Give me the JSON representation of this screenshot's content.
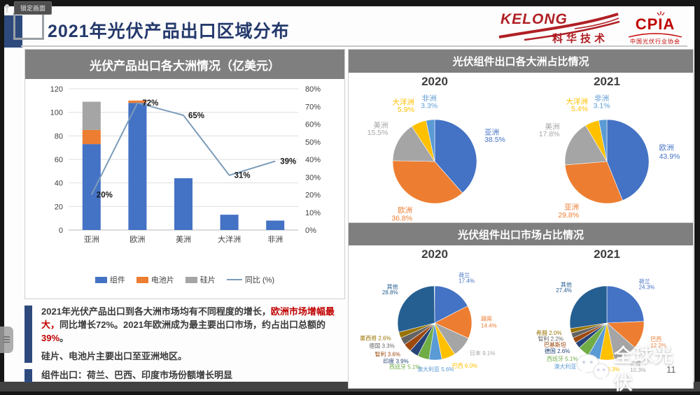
{
  "window": {
    "lock_tab_label": "锁定画面",
    "page_number": "11",
    "watermark_text": "全球光伏"
  },
  "header": {
    "title": "2021年光伏产品出口区域分布",
    "kelong_logo_text": "KELONG",
    "kelong_logo_sub": "科华技术",
    "cpia_logo_text": "CPIA",
    "cpia_logo_sub": "中国光伏行业协会"
  },
  "notes": {
    "para1_segments": [
      {
        "text": "2021年光伏产品出口到各大洲市场均有不同程度的增长，",
        "red": false
      },
      {
        "text": "欧洲市场增幅最大，",
        "red": true
      },
      {
        "text": "同比增长72%。2021年欧洲成为最主要出口市场，约占出口总额的",
        "red": false
      },
      {
        "text": "39%",
        "red": true
      },
      {
        "text": "。",
        "red": false
      }
    ],
    "para2": "硅片、电池片主要出口至亚洲地区。",
    "para3": "组件出口：荷兰、巴西、印度市场份额增长明显"
  },
  "chart_data": [
    {
      "type": "bar",
      "subtype": "stacked-bar-with-line",
      "panel_title": "光伏产品出口各大洲情况（亿美元）",
      "categories": [
        "亚洲",
        "欧洲",
        "美洲",
        "大洋洲",
        "非洲"
      ],
      "bar_series": [
        {
          "name": "组件",
          "color": "#4472c4",
          "values": [
            73,
            108,
            44,
            13,
            8
          ]
        },
        {
          "name": "电池片",
          "color": "#ed7d31",
          "values": [
            12,
            2,
            0,
            0,
            0
          ]
        },
        {
          "name": "硅片",
          "color": "#a5a5a5",
          "values": [
            24,
            0,
            0,
            0,
            0
          ]
        }
      ],
      "line_series": {
        "name": "同比 (%)",
        "color": "#7c9cba",
        "axis": "right",
        "values": [
          20,
          72,
          65,
          31,
          39
        ],
        "labels": [
          "20%",
          "72%",
          "65%",
          "31%",
          "39%"
        ]
      },
      "left_axis": {
        "min": 0,
        "max": 120,
        "step": 20
      },
      "right_axis": {
        "min": 0,
        "max": 80,
        "step": 10,
        "suffix": "%"
      },
      "stacked": true,
      "grid": true,
      "legend_position": "bottom"
    },
    {
      "type": "pie",
      "panel_title": "光伏组件出口各大洲占比情况",
      "palette": [
        "#4472c4",
        "#ed7d31",
        "#a5a5a5",
        "#ffc000",
        "#5b9bd5"
      ],
      "pies": [
        {
          "year": "2020",
          "slices": [
            {
              "name": "亚洲",
              "pct": 38.5,
              "pct_label": "38.5%"
            },
            {
              "name": "欧洲",
              "pct": 36.8,
              "pct_label": "36.8%"
            },
            {
              "name": "美洲",
              "pct": 15.5,
              "pct_label": "15.5%"
            },
            {
              "name": "大洋洲",
              "pct": 5.9,
              "pct_label": "5.9%"
            },
            {
              "name": "非洲",
              "pct": 3.3,
              "pct_label": "3.3%"
            }
          ]
        },
        {
          "year": "2021",
          "slices": [
            {
              "name": "欧洲",
              "pct": 43.9,
              "pct_label": "43.9%"
            },
            {
              "name": "亚洲",
              "pct": 29.8,
              "pct_label": "29.8%"
            },
            {
              "name": "美洲",
              "pct": 17.8,
              "pct_label": "17.8%"
            },
            {
              "name": "大洋洲",
              "pct": 5.4,
              "pct_label": "5.4%"
            },
            {
              "name": "非洲",
              "pct": 3.1,
              "pct_label": "3.1%"
            }
          ]
        }
      ]
    },
    {
      "type": "pie",
      "panel_title": "光伏组件出口市场占比情况",
      "palette": [
        "#4472c4",
        "#ed7d31",
        "#a5a5a5",
        "#ffc000",
        "#5b9bd5",
        "#70ad47",
        "#264478",
        "#9e480e",
        "#636363",
        "#997300",
        "#255e91"
      ],
      "pies": [
        {
          "year": "2020",
          "slices": [
            {
              "name": "荷兰",
              "pct": 17.4,
              "pct_label": "17.4%"
            },
            {
              "name": "越南",
              "pct": 14.4,
              "pct_label": "14.4%"
            },
            {
              "name": "日本",
              "pct": 9.1,
              "pct_label": "9.1%"
            },
            {
              "name": "巴西",
              "pct": 6.0,
              "pct_label": "6.0%"
            },
            {
              "name": "澳大利亚",
              "pct": 5.6,
              "pct_label": "5.6%"
            },
            {
              "name": "西班牙",
              "pct": 5.1,
              "pct_label": "5.1%"
            },
            {
              "name": "印度",
              "pct": 3.9,
              "pct_label": "3.9%"
            },
            {
              "name": "智利",
              "pct": 3.6,
              "pct_label": "3.6%"
            },
            {
              "name": "德国",
              "pct": 3.3,
              "pct_label": "3.3%"
            },
            {
              "name": "墨西哥",
              "pct": 2.6,
              "pct_label": "2.6%"
            },
            {
              "name": "其他",
              "pct": 28.8,
              "pct_label": "28.8%"
            }
          ]
        },
        {
          "year": "2021",
          "slices": [
            {
              "name": "荷兰",
              "pct": 24.3,
              "pct_label": "24.3%"
            },
            {
              "name": "巴西",
              "pct": 12.2,
              "pct_label": "12.2%"
            },
            {
              "name": "印度",
              "pct": 10.3,
              "pct_label": "10.3%"
            },
            {
              "name": "日本",
              "pct": 6.3,
              "pct_label": "6.3%"
            },
            {
              "name": "澳大利亚",
              "pct": 5.2,
              "pct_label": "5.2%"
            },
            {
              "name": "西班牙",
              "pct": 5.1,
              "pct_label": "5.1%"
            },
            {
              "name": "德国",
              "pct": 2.6,
              "pct_label": "2.6%"
            },
            {
              "name": "巴基斯坦",
              "pct": 2.4,
              "pct_label": ""
            },
            {
              "name": "智利",
              "pct": 2.2,
              "pct_label": "2.2%"
            },
            {
              "name": "希腊",
              "pct": 2.0,
              "pct_label": "2.0%"
            },
            {
              "name": "其他",
              "pct": 27.4,
              "pct_label": "27.4%"
            }
          ]
        }
      ]
    }
  ]
}
